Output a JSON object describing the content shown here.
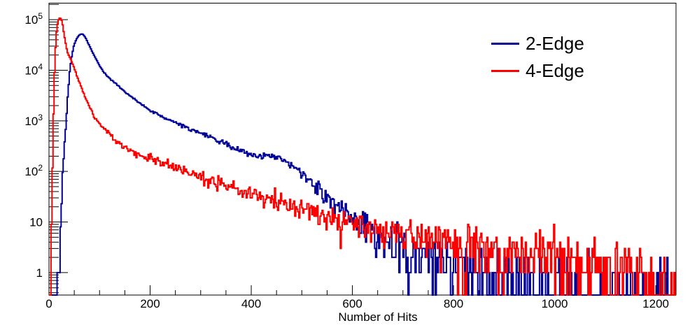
{
  "chart_data": {
    "type": "line",
    "mode": "step-histogram",
    "title": "",
    "xlabel": "Number of Hits",
    "ylabel": "",
    "x_range": [
      0,
      1240
    ],
    "y_range": [
      0.36,
      212000
    ],
    "y_scale": "log",
    "x_ticks": [
      0,
      200,
      400,
      600,
      800,
      1000,
      1200
    ],
    "x_minor_step": 50,
    "y_ticks": [
      {
        "value": 1,
        "label": "1",
        "exp": ""
      },
      {
        "value": 10,
        "label": "10",
        "exp": ""
      },
      {
        "value": 100,
        "label": "10",
        "exp": "2"
      },
      {
        "value": 1000,
        "label": "10",
        "exp": "3"
      },
      {
        "value": 10000,
        "label": "10",
        "exp": "4"
      },
      {
        "value": 100000,
        "label": "10",
        "exp": "5"
      }
    ],
    "grid": false,
    "legend_position": "top-right",
    "frame_color": "#000000",
    "background": "#ffffff",
    "bin_width": 2,
    "noise": "poisson",
    "noise_scale": 1.15,
    "seed": 20,
    "series": [
      {
        "name": "2-Edge",
        "color": "#000099",
        "trend": [
          [
            0,
            0
          ],
          [
            15,
            0
          ],
          [
            17,
            0.5
          ],
          [
            19,
            1
          ],
          [
            21,
            2.5
          ],
          [
            23,
            7
          ],
          [
            25,
            25
          ],
          [
            27,
            90
          ],
          [
            28,
            130
          ],
          [
            29,
            190
          ],
          [
            30,
            270
          ],
          [
            31,
            380
          ],
          [
            32,
            540
          ],
          [
            33,
            750
          ],
          [
            34,
            1050
          ],
          [
            35,
            1450
          ],
          [
            36,
            2050
          ],
          [
            37,
            2850
          ],
          [
            38,
            3900
          ],
          [
            39,
            5300
          ],
          [
            40,
            7100
          ],
          [
            41,
            9300
          ],
          [
            42,
            11500
          ],
          [
            44,
            16000
          ],
          [
            46,
            21000
          ],
          [
            48,
            27000
          ],
          [
            50,
            32000
          ],
          [
            52,
            36500
          ],
          [
            54,
            40500
          ],
          [
            56,
            44000
          ],
          [
            58,
            47000
          ],
          [
            60,
            49500
          ],
          [
            62,
            51000
          ],
          [
            64,
            52000
          ],
          [
            66,
            51800
          ],
          [
            68,
            50300
          ],
          [
            70,
            47500
          ],
          [
            72,
            44500
          ],
          [
            75,
            38500
          ],
          [
            78,
            33500
          ],
          [
            81,
            29000
          ],
          [
            84,
            25000
          ],
          [
            87,
            21800
          ],
          [
            90,
            19000
          ],
          [
            94,
            16000
          ],
          [
            98,
            13500
          ],
          [
            103,
            11000
          ],
          [
            110,
            8800
          ],
          [
            118,
            7100
          ],
          [
            126,
            6100
          ],
          [
            134,
            5200
          ],
          [
            142,
            4400
          ],
          [
            150,
            3750
          ],
          [
            160,
            3100
          ],
          [
            172,
            2550
          ],
          [
            186,
            2000
          ],
          [
            200,
            1580
          ],
          [
            215,
            1330
          ],
          [
            230,
            1130
          ],
          [
            245,
            980
          ],
          [
            262,
            830
          ],
          [
            280,
            690
          ],
          [
            300,
            570
          ],
          [
            320,
            465
          ],
          [
            340,
            380
          ],
          [
            360,
            310
          ],
          [
            375,
            265
          ],
          [
            388,
            238
          ],
          [
            400,
            224
          ],
          [
            412,
            212
          ],
          [
            425,
            207
          ],
          [
            438,
            201
          ],
          [
            450,
            193
          ],
          [
            462,
            176
          ],
          [
            472,
            152
          ],
          [
            482,
            127
          ],
          [
            492,
            105
          ],
          [
            502,
            86
          ],
          [
            512,
            69
          ],
          [
            522,
            56
          ],
          [
            532,
            46
          ],
          [
            542,
            38
          ],
          [
            552,
            31
          ],
          [
            562,
            26
          ],
          [
            572,
            21.5
          ],
          [
            582,
            17.5
          ],
          [
            592,
            15.5
          ],
          [
            602,
            13.5
          ],
          [
            614,
            11
          ],
          [
            626,
            8.8
          ],
          [
            640,
            7
          ],
          [
            654,
            5.6
          ],
          [
            668,
            4.6
          ],
          [
            684,
            3.8
          ],
          [
            700,
            3.2
          ],
          [
            720,
            2.6
          ],
          [
            742,
            2.1
          ],
          [
            765,
            1.8
          ],
          [
            790,
            1.5
          ],
          [
            820,
            1.28
          ],
          [
            855,
            1.08
          ],
          [
            890,
            0.9
          ],
          [
            930,
            0.72
          ],
          [
            975,
            0.58
          ],
          [
            1020,
            0.48
          ],
          [
            1070,
            0.4
          ],
          [
            1130,
            0.33
          ],
          [
            1180,
            0.28
          ],
          [
            1240,
            0.24
          ]
        ]
      },
      {
        "name": "4-Edge",
        "color": "#ff0000",
        "trend": [
          [
            0,
            0
          ],
          [
            3,
            0.3
          ],
          [
            4,
            1.2
          ],
          [
            5,
            4
          ],
          [
            6,
            22
          ],
          [
            7,
            100
          ],
          [
            8,
            420
          ],
          [
            9,
            1400
          ],
          [
            10,
            4000
          ],
          [
            11,
            9000
          ],
          [
            12,
            17000
          ],
          [
            13,
            28000
          ],
          [
            14,
            42000
          ],
          [
            15,
            56000
          ],
          [
            16,
            70000
          ],
          [
            17,
            82000
          ],
          [
            18,
            92000
          ],
          [
            19,
            99500
          ],
          [
            20,
            104500
          ],
          [
            21,
            107000
          ],
          [
            22,
            108000
          ],
          [
            23,
            106000
          ],
          [
            24,
            102000
          ],
          [
            25,
            96500
          ],
          [
            26,
            89500
          ],
          [
            27,
            79000
          ],
          [
            28,
            68000
          ],
          [
            29,
            58500
          ],
          [
            30,
            50000
          ],
          [
            31,
            44000
          ],
          [
            32,
            38500
          ],
          [
            33,
            34000
          ],
          [
            34,
            30000
          ],
          [
            36,
            24000
          ],
          [
            38,
            20500
          ],
          [
            40,
            19000
          ],
          [
            42,
            17300
          ],
          [
            44,
            15800
          ],
          [
            46,
            14000
          ],
          [
            48,
            12400
          ],
          [
            50,
            11000
          ],
          [
            53,
            9000
          ],
          [
            56,
            7400
          ],
          [
            59,
            6200
          ],
          [
            62,
            5200
          ],
          [
            65,
            4400
          ],
          [
            68,
            3650
          ],
          [
            71,
            3000
          ],
          [
            74,
            2550
          ],
          [
            78,
            2080
          ],
          [
            82,
            1720
          ],
          [
            86,
            1430
          ],
          [
            90,
            1200
          ],
          [
            94,
            1030
          ],
          [
            98,
            900
          ],
          [
            105,
            760
          ],
          [
            112,
            650
          ],
          [
            119,
            550
          ],
          [
            126,
            465
          ],
          [
            133,
            410
          ],
          [
            140,
            360
          ],
          [
            147,
            320
          ],
          [
            154,
            290
          ],
          [
            166,
            245
          ],
          [
            178,
            215
          ],
          [
            190,
            197
          ],
          [
            200,
            186
          ],
          [
            215,
            162
          ],
          [
            230,
            142
          ],
          [
            245,
            122
          ],
          [
            262,
            105
          ],
          [
            280,
            89
          ],
          [
            300,
            76
          ],
          [
            320,
            65
          ],
          [
            340,
            57
          ],
          [
            360,
            50
          ],
          [
            380,
            42
          ],
          [
            400,
            35
          ],
          [
            425,
            30
          ],
          [
            450,
            26
          ],
          [
            475,
            22
          ],
          [
            500,
            18.5
          ],
          [
            525,
            15.5
          ],
          [
            550,
            13.2
          ],
          [
            575,
            11.4
          ],
          [
            600,
            10
          ],
          [
            625,
            8.8
          ],
          [
            650,
            7.6
          ],
          [
            675,
            6.8
          ],
          [
            700,
            6.2
          ],
          [
            740,
            5.4
          ],
          [
            780,
            4.6
          ],
          [
            830,
            3.7
          ],
          [
            880,
            3.0
          ],
          [
            930,
            2.5
          ],
          [
            980,
            2.1
          ],
          [
            1030,
            1.75
          ],
          [
            1080,
            1.4
          ],
          [
            1130,
            1.0
          ],
          [
            1180,
            0.68
          ],
          [
            1240,
            0.42
          ]
        ]
      }
    ]
  }
}
